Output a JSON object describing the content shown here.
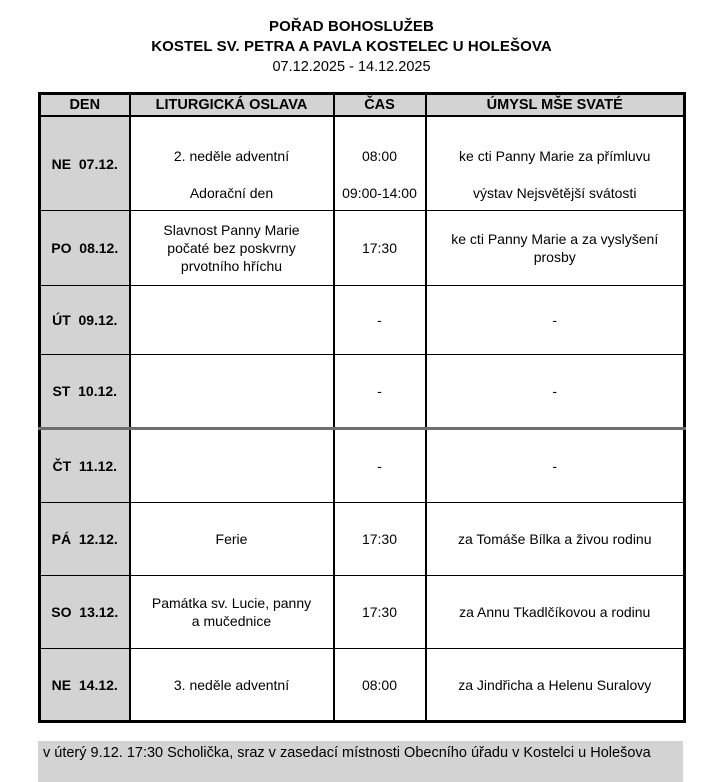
{
  "page": {
    "title_main": "POŘAD BOHOSLUŽEB",
    "title_sub": "KOSTEL SV. PETRA A PAVLA KOSTELEC U HOLEŠOVA",
    "date_range": "07.12.2025 - 14.12.2025"
  },
  "table": {
    "headers": {
      "day": "DEN",
      "liturgy": "LITURGICKÁ OSLAVA",
      "time": "ČAS",
      "intention": "ÚMYSL MŠE SVATÉ"
    },
    "rows": [
      {
        "day": "NE  07.12.",
        "entries": [
          {
            "liturgy": "2. neděle adventní",
            "time": "08:00",
            "intention": "ke cti Panny Marie za přímluvu"
          },
          {
            "liturgy": "Adorační den",
            "time": "09:00-14:00",
            "intention": "výstav Nejsvětější svátosti"
          }
        ]
      },
      {
        "day": "PO  08.12.",
        "entries": [
          {
            "liturgy": "Slavnost Panny Marie\npočaté bez poskvrny\nprvotního hříchu",
            "time": "17:30",
            "intention": "ke cti Panny Marie a za vyslyšení\nprosby"
          }
        ]
      },
      {
        "day": "ÚT  09.12.",
        "entries": [
          {
            "liturgy": "",
            "time": "-",
            "intention": "-"
          }
        ]
      },
      {
        "day": "ST  10.12.",
        "entries": [
          {
            "liturgy": "",
            "time": "-",
            "intention": "-"
          }
        ]
      },
      {
        "day": "ČT  11.12.",
        "entries": [
          {
            "liturgy": "",
            "time": "-",
            "intention": "-"
          }
        ]
      },
      {
        "day": "PÁ  12.12.",
        "entries": [
          {
            "liturgy": "Ferie",
            "time": "17:30",
            "intention": "za Tomáše Bílka a živou rodinu"
          }
        ]
      },
      {
        "day": "SO  13.12.",
        "entries": [
          {
            "liturgy": "Památka sv. Lucie, panny\na mučednice",
            "time": "17:30",
            "intention": "za Annu Tkadlčíkovou a rodinu"
          }
        ]
      },
      {
        "day": "NE  14.12.",
        "entries": [
          {
            "liturgy": "3. neděle adventní",
            "time": "08:00",
            "intention": "za Jindřicha a Helenu Suralovy"
          }
        ]
      }
    ]
  },
  "footer": {
    "note": "v úterý 9.12. 17:30 Scholička, sraz v zasedací místnosti Obecního úřadu v Kostelci u Holešova"
  },
  "colors": {
    "cell_gray": "#d3d3d3",
    "border": "#000000",
    "divider_gray": "#6e6e6e"
  }
}
